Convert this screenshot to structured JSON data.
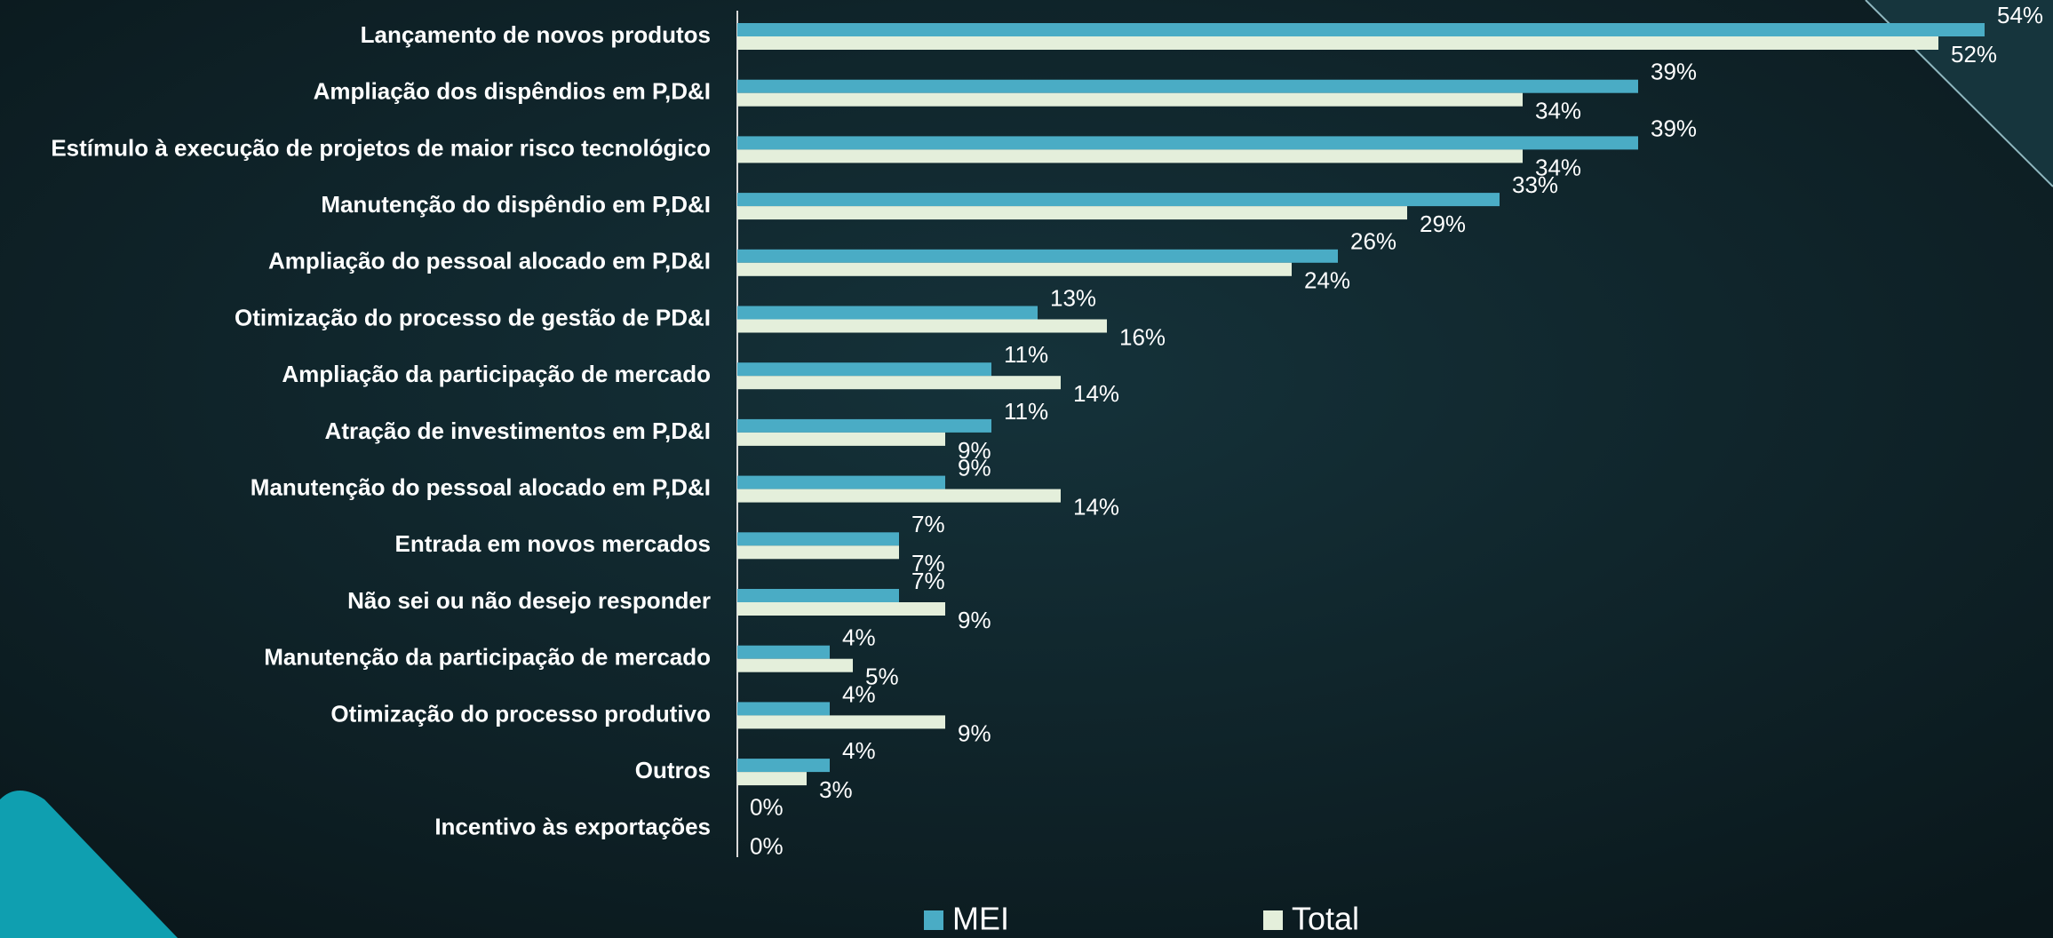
{
  "chart_data": {
    "type": "bar",
    "orientation": "horizontal",
    "categories": [
      "Lançamento de novos produtos",
      "Ampliação dos dispêndios em P,D&I",
      "Estímulo à execução de projetos de maior risco tecnológico",
      "Manutenção do dispêndio em P,D&I",
      "Ampliação do pessoal alocado em P,D&I",
      "Otimização do processo de gestão de PD&I",
      "Ampliação da participação de mercado",
      "Atração de investimentos em P,D&I",
      "Manutenção do pessoal alocado em P,D&I",
      "Entrada em novos mercados",
      "Não sei ou não desejo responder",
      "Manutenção da participação de mercado",
      "Otimização do processo produtivo",
      "Outros",
      "Incentivo às exportações"
    ],
    "series": [
      {
        "name": "MEI",
        "color": "#4aacc5",
        "values": [
          54,
          39,
          39,
          33,
          26,
          13,
          11,
          11,
          9,
          7,
          7,
          4,
          4,
          4,
          0
        ],
        "value_labels": [
          "54%",
          "39%",
          "39%",
          "33%",
          "26%",
          "13%",
          "11%",
          "11%",
          "9%",
          "7%",
          "7%",
          "4%",
          "4%",
          "4%",
          "0%"
        ]
      },
      {
        "name": "Total",
        "color": "#e4efdb",
        "values": [
          52,
          34,
          34,
          29,
          24,
          16,
          14,
          9,
          14,
          7,
          9,
          5,
          9,
          3,
          0
        ],
        "value_labels": [
          "52%",
          "34%",
          "34%",
          "29%",
          "24%",
          "16%",
          "14%",
          "9%",
          "14%",
          "7%",
          "9%",
          "5%",
          "9%",
          "3%",
          "0%"
        ]
      }
    ],
    "legend": "bottom"
  }
}
